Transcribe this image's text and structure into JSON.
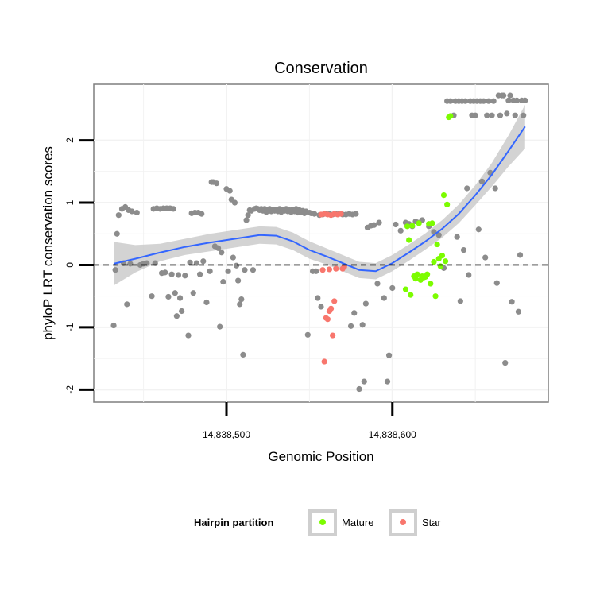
{
  "chart_data": {
    "type": "scatter",
    "title": "Conservation",
    "xlabel": "Genomic Position",
    "ylabel": "phyloP LRT conservation scores",
    "x_ticks": [
      {
        "value": 14838500,
        "label": "14,838,500"
      },
      {
        "value": 14838600,
        "label": "14,838,600"
      }
    ],
    "y_ticks": [
      {
        "value": -2,
        "label": "-2"
      },
      {
        "value": -1,
        "label": "-1"
      },
      {
        "value": 0,
        "label": "0"
      },
      {
        "value": 1,
        "label": "1"
      },
      {
        "value": 2,
        "label": "2"
      }
    ],
    "xlim": [
      14838420,
      14838694
    ],
    "ylim": [
      -2.2,
      2.9
    ],
    "reference_line": {
      "y": 0,
      "style": "dashed",
      "color": "#000000"
    },
    "grid": true,
    "legend": {
      "title": "Hairpin partition",
      "position": "bottom",
      "entries": [
        {
          "label": "Mature",
          "color": "#7CFC00"
        },
        {
          "label": "Star",
          "color": "#F8766D"
        }
      ]
    },
    "colors": {
      "other": "#8C8C8C",
      "smooth": "#3366FF",
      "band": "#C8C8C8"
    },
    "series": [
      {
        "group": "other",
        "points": [
          [
            14838432,
            -0.97
          ],
          [
            14838433,
            -0.08
          ],
          [
            14838434,
            0.5
          ],
          [
            14838435,
            0.8
          ],
          [
            14838437,
            0.9
          ],
          [
            14838438,
            0.03
          ],
          [
            14838439,
            0.93
          ],
          [
            14838440,
            -0.63
          ],
          [
            14838441,
            0.88
          ],
          [
            14838442,
            0.02
          ],
          [
            14838443,
            0.86
          ],
          [
            14838446,
            0.84
          ],
          [
            14838448,
            0.0
          ],
          [
            14838450,
            0.02
          ],
          [
            14838452,
            0.03
          ],
          [
            14838455,
            -0.5
          ],
          [
            14838456,
            0.9
          ],
          [
            14838457,
            0.03
          ],
          [
            14838458,
            0.91
          ],
          [
            14838460,
            0.9
          ],
          [
            14838461,
            -0.13
          ],
          [
            14838462,
            0.91
          ],
          [
            14838463,
            -0.12
          ],
          [
            14838464,
            0.91
          ],
          [
            14838465,
            -0.51
          ],
          [
            14838466,
            0.91
          ],
          [
            14838467,
            -0.15
          ],
          [
            14838468,
            0.9
          ],
          [
            14838469,
            -0.45
          ],
          [
            14838470,
            -0.82
          ],
          [
            14838471,
            -0.16
          ],
          [
            14838472,
            -0.53
          ],
          [
            14838473,
            -0.74
          ],
          [
            14838475,
            -0.17
          ],
          [
            14838477,
            -1.13
          ],
          [
            14838478,
            0.04
          ],
          [
            14838479,
            0.83
          ],
          [
            14838480,
            -0.45
          ],
          [
            14838481,
            0.84
          ],
          [
            14838482,
            0.03
          ],
          [
            14838483,
            0.84
          ],
          [
            14838484,
            -0.15
          ],
          [
            14838485,
            0.82
          ],
          [
            14838486,
            0.06
          ],
          [
            14838488,
            -0.6
          ],
          [
            14838490,
            -0.1
          ],
          [
            14838491,
            1.33
          ],
          [
            14838492,
            1.33
          ],
          [
            14838493,
            0.3
          ],
          [
            14838494,
            1.31
          ],
          [
            14838495,
            0.27
          ],
          [
            14838496,
            -0.99
          ],
          [
            14838497,
            0.2
          ],
          [
            14838498,
            -0.27
          ],
          [
            14838500,
            1.22
          ],
          [
            14838501,
            -0.1
          ],
          [
            14838502,
            1.19
          ],
          [
            14838503,
            1.05
          ],
          [
            14838504,
            0.12
          ],
          [
            14838505,
            1.0
          ],
          [
            14838506,
            -0.01
          ],
          [
            14838507,
            -0.25
          ],
          [
            14838508,
            -0.63
          ],
          [
            14838509,
            -0.55
          ],
          [
            14838510,
            -1.44
          ],
          [
            14838511,
            -0.08
          ],
          [
            14838512,
            0.72
          ],
          [
            14838513,
            0.8
          ],
          [
            14838514,
            0.88
          ],
          [
            14838515,
            0.87
          ],
          [
            14838516,
            -0.08
          ],
          [
            14838517,
            0.9
          ],
          [
            14838518,
            0.91
          ],
          [
            14838519,
            0.9
          ],
          [
            14838520,
            0.88
          ],
          [
            14838521,
            0.9
          ],
          [
            14838522,
            0.87
          ],
          [
            14838523,
            0.9
          ],
          [
            14838524,
            0.85
          ],
          [
            14838525,
            0.88
          ],
          [
            14838526,
            0.9
          ],
          [
            14838527,
            0.86
          ],
          [
            14838528,
            0.89
          ],
          [
            14838529,
            0.87
          ],
          [
            14838530,
            0.89
          ],
          [
            14838531,
            0.86
          ],
          [
            14838532,
            0.9
          ],
          [
            14838533,
            0.85
          ],
          [
            14838534,
            0.89
          ],
          [
            14838535,
            0.87
          ],
          [
            14838536,
            0.9
          ],
          [
            14838537,
            0.86
          ],
          [
            14838538,
            0.88
          ],
          [
            14838539,
            0.85
          ],
          [
            14838540,
            0.89
          ],
          [
            14838541,
            0.86
          ],
          [
            14838542,
            0.9
          ],
          [
            14838543,
            0.84
          ],
          [
            14838544,
            0.88
          ],
          [
            14838545,
            0.85
          ],
          [
            14838546,
            0.87
          ],
          [
            14838547,
            0.83
          ],
          [
            14838548,
            0.86
          ],
          [
            14838549,
            -1.12
          ],
          [
            14838550,
            0.84
          ],
          [
            14838551,
            0.83
          ],
          [
            14838552,
            -0.1
          ],
          [
            14838553,
            0.82
          ],
          [
            14838554,
            -0.1
          ],
          [
            14838555,
            -0.53
          ],
          [
            14838556,
            0.8
          ],
          [
            14838557,
            -0.67
          ],
          [
            14838558,
            0.81
          ],
          [
            14838560,
            0.82
          ],
          [
            14838562,
            0.82
          ],
          [
            14838564,
            0.81
          ],
          [
            14838566,
            0.82
          ],
          [
            14838568,
            0.82
          ],
          [
            14838570,
            0.81
          ],
          [
            14838572,
            0.81
          ],
          [
            14838574,
            0.82
          ],
          [
            14838575,
            -0.98
          ],
          [
            14838576,
            0.81
          ],
          [
            14838577,
            -0.77
          ],
          [
            14838578,
            0.82
          ],
          [
            14838580,
            -1.99
          ],
          [
            14838582,
            -0.96
          ],
          [
            14838583,
            -1.87
          ],
          [
            14838584,
            -0.62
          ],
          [
            14838585,
            0.6
          ],
          [
            14838587,
            0.63
          ],
          [
            14838589,
            0.64
          ],
          [
            14838591,
            -0.3
          ],
          [
            14838592,
            0.68
          ],
          [
            14838595,
            -0.53
          ],
          [
            14838597,
            -1.87
          ],
          [
            14838598,
            -1.45
          ],
          [
            14838600,
            -0.37
          ],
          [
            14838602,
            0.65
          ],
          [
            14838605,
            0.55
          ],
          [
            14838608,
            0.68
          ],
          [
            14838610,
            0.66
          ],
          [
            14838612,
            0.62
          ],
          [
            14838614,
            0.7
          ],
          [
            14838616,
            0.68
          ],
          [
            14838618,
            0.72
          ],
          [
            14838622,
            0.62
          ],
          [
            14838625,
            0.53
          ],
          [
            14838628,
            0.48
          ],
          [
            14838631,
            -0.05
          ],
          [
            14838633,
            2.63
          ],
          [
            14838635,
            2.63
          ],
          [
            14838637,
            2.4
          ],
          [
            14838638,
            2.63
          ],
          [
            14838639,
            0.45
          ],
          [
            14838640,
            2.63
          ],
          [
            14838641,
            -0.58
          ],
          [
            14838642,
            2.63
          ],
          [
            14838643,
            0.24
          ],
          [
            14838644,
            2.63
          ],
          [
            14838645,
            1.23
          ],
          [
            14838646,
            -0.16
          ],
          [
            14838647,
            2.63
          ],
          [
            14838648,
            2.4
          ],
          [
            14838649,
            2.63
          ],
          [
            14838650,
            2.4
          ],
          [
            14838651,
            2.63
          ],
          [
            14838652,
            0.57
          ],
          [
            14838653,
            2.63
          ],
          [
            14838654,
            1.34
          ],
          [
            14838655,
            2.63
          ],
          [
            14838656,
            0.12
          ],
          [
            14838657,
            2.4
          ],
          [
            14838658,
            2.63
          ],
          [
            14838659,
            1.48
          ],
          [
            14838660,
            2.4
          ],
          [
            14838661,
            2.63
          ],
          [
            14838662,
            1.23
          ],
          [
            14838663,
            -0.29
          ],
          [
            14838664,
            2.72
          ],
          [
            14838665,
            2.4
          ],
          [
            14838666,
            2.72
          ],
          [
            14838667,
            2.72
          ],
          [
            14838668,
            -1.57
          ],
          [
            14838669,
            2.43
          ],
          [
            14838670,
            2.64
          ],
          [
            14838671,
            2.72
          ],
          [
            14838672,
            -0.59
          ],
          [
            14838673,
            2.64
          ],
          [
            14838674,
            2.4
          ],
          [
            14838675,
            2.64
          ],
          [
            14838676,
            -0.75
          ],
          [
            14838677,
            0.16
          ],
          [
            14838678,
            2.64
          ],
          [
            14838679,
            2.4
          ],
          [
            14838680,
            2.64
          ]
        ]
      },
      {
        "group": "Star",
        "points": [
          [
            14838557,
            0.81
          ],
          [
            14838559,
            0.82
          ],
          [
            14838561,
            0.81
          ],
          [
            14838563,
            0.8
          ],
          [
            14838565,
            0.82
          ],
          [
            14838567,
            0.81
          ],
          [
            14838569,
            0.82
          ],
          [
            14838558,
            -0.08
          ],
          [
            14838562,
            -0.07
          ],
          [
            14838566,
            -0.06
          ],
          [
            14838570,
            -0.06
          ],
          [
            14838559,
            -1.55
          ],
          [
            14838560,
            -0.85
          ],
          [
            14838561,
            -0.87
          ],
          [
            14838562,
            -0.74
          ],
          [
            14838563,
            -0.7
          ],
          [
            14838564,
            -1.13
          ],
          [
            14838565,
            -0.58
          ],
          [
            14838571,
            -0.03
          ]
        ]
      },
      {
        "group": "Mature",
        "points": [
          [
            14838608,
            -0.39
          ],
          [
            14838609,
            0.62
          ],
          [
            14838610,
            0.4
          ],
          [
            14838611,
            -0.48
          ],
          [
            14838612,
            0.63
          ],
          [
            14838613,
            -0.18
          ],
          [
            14838614,
            -0.22
          ],
          [
            14838615,
            -0.15
          ],
          [
            14838616,
            0.67
          ],
          [
            14838617,
            -0.24
          ],
          [
            14838618,
            -0.18
          ],
          [
            14838619,
            -0.2
          ],
          [
            14838620,
            -0.19
          ],
          [
            14838621,
            -0.15
          ],
          [
            14838622,
            0.66
          ],
          [
            14838623,
            -0.3
          ],
          [
            14838624,
            0.67
          ],
          [
            14838625,
            0.05
          ],
          [
            14838626,
            -0.5
          ],
          [
            14838627,
            0.33
          ],
          [
            14838628,
            0.1
          ],
          [
            14838629,
            -0.02
          ],
          [
            14838630,
            0.15
          ],
          [
            14838631,
            1.12
          ],
          [
            14838632,
            0.06
          ],
          [
            14838633,
            0.97
          ],
          [
            14838634,
            2.37
          ],
          [
            14838635,
            2.39
          ]
        ]
      }
    ],
    "smooth": {
      "x": [
        14838432,
        14838445,
        14838460,
        14838475,
        14838490,
        14838505,
        14838520,
        14838530,
        14838540,
        14838550,
        14838560,
        14838570,
        14838580,
        14838590,
        14838600,
        14838610,
        14838620,
        14838630,
        14838640,
        14838650,
        14838660,
        14838670,
        14838680
      ],
      "y": [
        0.02,
        0.1,
        0.2,
        0.29,
        0.36,
        0.42,
        0.48,
        0.47,
        0.38,
        0.24,
        0.14,
        0.03,
        -0.08,
        -0.1,
        0.03,
        0.2,
        0.38,
        0.58,
        0.82,
        1.12,
        1.45,
        1.83,
        2.22
      ],
      "se": [
        0.35,
        0.22,
        0.14,
        0.13,
        0.14,
        0.14,
        0.14,
        0.14,
        0.14,
        0.14,
        0.13,
        0.13,
        0.13,
        0.13,
        0.13,
        0.13,
        0.13,
        0.14,
        0.15,
        0.16,
        0.19,
        0.25,
        0.35
      ]
    }
  }
}
